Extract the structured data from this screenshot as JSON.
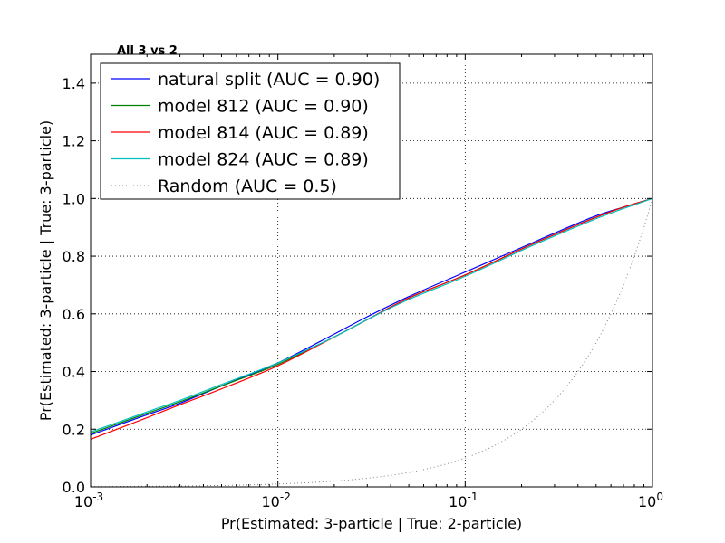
{
  "chart_data": {
    "type": "line",
    "title": "All 3 vs 2",
    "xlabel": "Pr(Estimated: 3-particle | True: 2-particle)",
    "ylabel": "Pr(Estimated: 3-particle | True: 3-particle)",
    "xscale": "log",
    "xlim": [
      0.001,
      1
    ],
    "ylim": [
      0,
      1.5
    ],
    "grid": true,
    "legend_position": "top-left",
    "x_ticks": [
      {
        "value": 0.001,
        "base": "10",
        "exp": "-3"
      },
      {
        "value": 0.01,
        "base": "10",
        "exp": "-2"
      },
      {
        "value": 0.1,
        "base": "10",
        "exp": "-1"
      },
      {
        "value": 1,
        "base": "10",
        "exp": "0"
      }
    ],
    "y_ticks": [
      "0.0",
      "0.2",
      "0.4",
      "0.6",
      "0.8",
      "1.0",
      "1.2",
      "1.4"
    ],
    "series": [
      {
        "name": "natural split (AUC = 0.90)",
        "color": "#0000ff",
        "style": "solid",
        "x": [
          0.001,
          0.002,
          0.003,
          0.005,
          0.01,
          0.02,
          0.03,
          0.05,
          0.1,
          0.2,
          0.3,
          0.5,
          0.7,
          1.0
        ],
        "y": [
          0.18,
          0.25,
          0.29,
          0.35,
          0.43,
          0.53,
          0.59,
          0.66,
          0.745,
          0.83,
          0.88,
          0.94,
          0.97,
          1.0
        ]
      },
      {
        "name": "model 812 (AUC = 0.90)",
        "color": "#008000",
        "style": "solid",
        "x": [
          0.001,
          0.002,
          0.003,
          0.005,
          0.01,
          0.02,
          0.03,
          0.05,
          0.1,
          0.2,
          0.3,
          0.5,
          0.7,
          1.0
        ],
        "y": [
          0.185,
          0.255,
          0.295,
          0.35,
          0.425,
          0.52,
          0.58,
          0.655,
          0.735,
          0.825,
          0.875,
          0.935,
          0.97,
          1.0
        ]
      },
      {
        "name": "model 814 (AUC = 0.89)",
        "color": "#ff0000",
        "style": "solid",
        "x": [
          0.001,
          0.002,
          0.003,
          0.005,
          0.01,
          0.02,
          0.03,
          0.05,
          0.1,
          0.2,
          0.3,
          0.5,
          0.7,
          1.0
        ],
        "y": [
          0.165,
          0.24,
          0.285,
          0.34,
          0.42,
          0.52,
          0.58,
          0.655,
          0.735,
          0.825,
          0.875,
          0.935,
          0.97,
          1.0
        ]
      },
      {
        "name": "model 824 (AUC = 0.89)",
        "color": "#00bfbf",
        "style": "solid",
        "x": [
          0.001,
          0.002,
          0.003,
          0.005,
          0.01,
          0.02,
          0.03,
          0.05,
          0.1,
          0.2,
          0.3,
          0.5,
          0.7,
          1.0
        ],
        "y": [
          0.19,
          0.26,
          0.3,
          0.355,
          0.43,
          0.52,
          0.58,
          0.65,
          0.73,
          0.82,
          0.87,
          0.93,
          0.965,
          1.0
        ]
      },
      {
        "name": "Random (AUC = 0.5)",
        "color": "#808080",
        "style": "dotted",
        "x": [
          0.001,
          0.01,
          0.1,
          1.0
        ],
        "y": [
          0.001,
          0.01,
          0.1,
          1.0
        ]
      }
    ]
  }
}
